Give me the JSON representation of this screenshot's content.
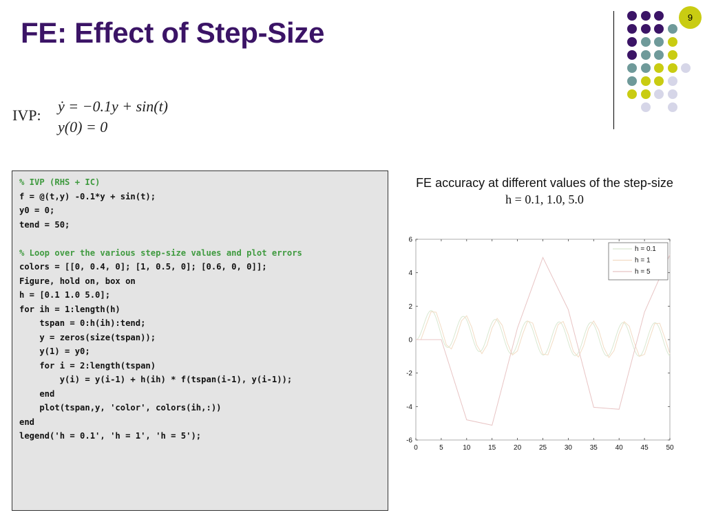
{
  "slide": {
    "title": "FE: Effect of Step-Size",
    "page_number": "9"
  },
  "ivp": {
    "label": "IVP:",
    "equation1": "ẏ = −0.1y + sin(t)",
    "equation2": "y(0) = 0"
  },
  "code": {
    "lines": [
      {
        "text": "% IVP (RHS + IC)",
        "comment": true
      },
      {
        "text": "f = @(t,y) -0.1*y + sin(t);",
        "comment": false
      },
      {
        "text": "y0 = 0;",
        "comment": false
      },
      {
        "text": "tend = 50;",
        "comment": false
      },
      {
        "text": "",
        "comment": false
      },
      {
        "text": "% Loop over the various step-size values and plot errors",
        "comment": true
      },
      {
        "text": "colors = [[0, 0.4, 0]; [1, 0.5, 0]; [0.6, 0, 0]];",
        "comment": false
      },
      {
        "text": "Figure, hold on, box on",
        "comment": false
      },
      {
        "text": "h = [0.1 1.0 5.0];",
        "comment": false
      },
      {
        "text": "for ih = 1:length(h)",
        "comment": false
      },
      {
        "text": "    tspan = 0:h(ih):tend;",
        "comment": false
      },
      {
        "text": "    y = zeros(size(tspan));",
        "comment": false
      },
      {
        "text": "    y(1) = y0;",
        "comment": false
      },
      {
        "text": "    for i = 2:length(tspan)",
        "comment": false
      },
      {
        "text": "        y(i) = y(i-1) + h(ih) * f(tspan(i-1), y(i-1));",
        "comment": false
      },
      {
        "text": "    end",
        "comment": false
      },
      {
        "text": "    plot(tspan,y, 'color', colors(ih,:))",
        "comment": false
      },
      {
        "text": "end",
        "comment": false
      },
      {
        "text": "legend('h = 0.1', 'h = 1', 'h = 5');",
        "comment": false
      }
    ]
  },
  "chart_header": {
    "title": "FE accuracy at different values of the step-size",
    "subtitle": "h = 0.1, 1.0, 5.0"
  },
  "chart_data": {
    "type": "line",
    "xlim": [
      0,
      50
    ],
    "ylim": [
      -6,
      6
    ],
    "x_ticks": [
      0,
      5,
      10,
      15,
      20,
      25,
      30,
      35,
      40,
      45,
      50
    ],
    "y_ticks": [
      -6,
      -4,
      -2,
      0,
      2,
      4,
      6
    ],
    "grid": false,
    "legend_position": "top-right",
    "series": [
      {
        "name": "h = 0.1",
        "color": "#d9e8d0",
        "step": 0.1
      },
      {
        "name": "h = 1",
        "color": "#f2dcc4",
        "step": 1
      },
      {
        "name": "h = 5",
        "color": "#e8c4c4",
        "step": 5
      }
    ]
  },
  "decor": {
    "colors": {
      "purple": "#3b1466",
      "teal": "#6f9a9a",
      "yellow": "#c9cc12",
      "lavender": "#d6d6e8"
    },
    "dot_rows": [
      [
        "purple",
        "purple",
        "purple",
        "",
        ""
      ],
      [
        "purple",
        "purple",
        "purple",
        "teal",
        ""
      ],
      [
        "purple",
        "teal",
        "teal",
        "yellow",
        ""
      ],
      [
        "purple",
        "teal",
        "teal",
        "yellow",
        ""
      ],
      [
        "teal",
        "teal",
        "yellow",
        "yellow",
        "lavender"
      ],
      [
        "teal",
        "yellow",
        "yellow",
        "lavender",
        ""
      ],
      [
        "yellow",
        "yellow",
        "lavender",
        "lavender",
        ""
      ],
      [
        "",
        "lavender",
        "",
        "lavender",
        ""
      ]
    ]
  }
}
